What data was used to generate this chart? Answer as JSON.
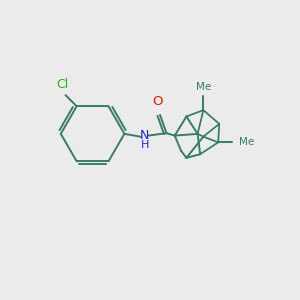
{
  "background_color": "#ebebeb",
  "bond_color": "#3a7a6a",
  "cl_color": "#22bb00",
  "n_color": "#2222cc",
  "o_color": "#cc2200",
  "bond_lw": 1.4,
  "figsize": [
    3.0,
    3.0
  ],
  "dpi": 100,
  "xlim": [
    0,
    10
  ],
  "ylim": [
    0,
    10
  ]
}
